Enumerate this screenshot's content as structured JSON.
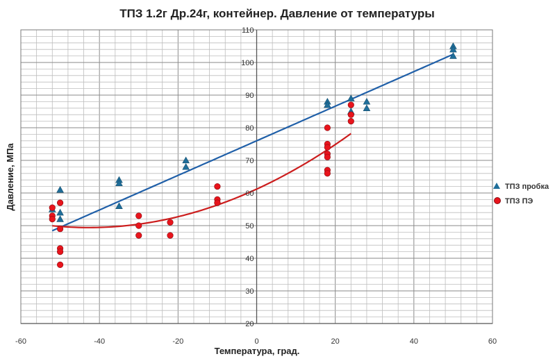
{
  "chart_data": {
    "type": "scatter",
    "title": "ТПЗ 1.2г Др.24г, контейнер. Давление от температуры",
    "xlabel": "Температура, град.",
    "ylabel": "Давление, МПа",
    "xlim": [
      -60,
      60
    ],
    "ylim": [
      20,
      110
    ],
    "xticks": [
      -60,
      -40,
      -20,
      0,
      20,
      40,
      60
    ],
    "xtick_labels": [
      "-60",
      "-40",
      "-20",
      "0",
      "20",
      "40",
      "60"
    ],
    "yticks": [
      20,
      30,
      40,
      50,
      60,
      70,
      80,
      90,
      100,
      110
    ],
    "ytick_labels": [
      "20",
      "30",
      "40",
      "50",
      "60",
      "70",
      "80",
      "90",
      "100",
      "110"
    ],
    "grid": true,
    "minor_x_step": 4,
    "minor_y_step": 2,
    "legend_position": "right",
    "series": [
      {
        "name": "ТПЗ пробка",
        "marker": "triangle",
        "color": "#1f6e9a",
        "trend_color": "#1f5fa8",
        "trend": {
          "type": "linear",
          "x_range": [
            -52,
            50
          ],
          "coefficients": [
            76.0,
            0.53
          ]
        },
        "points": [
          [
            -52,
            55
          ],
          [
            -50,
            61
          ],
          [
            -50,
            54
          ],
          [
            -50,
            52
          ],
          [
            -35,
            64
          ],
          [
            -35,
            63
          ],
          [
            -35,
            56
          ],
          [
            -18,
            70
          ],
          [
            -18,
            68
          ],
          [
            18,
            88
          ],
          [
            18,
            87
          ],
          [
            24,
            89
          ],
          [
            24,
            85
          ],
          [
            28,
            88
          ],
          [
            28,
            86
          ],
          [
            50,
            105
          ],
          [
            50,
            104
          ],
          [
            50,
            102
          ]
        ]
      },
      {
        "name": "ТПЗ ПЭ",
        "marker": "circle",
        "color": "#e8141c",
        "trend_color": "#cc1d1d",
        "trend": {
          "type": "polynomial",
          "x_range": [
            -52,
            24
          ],
          "coefficients": [
            61.2,
            0.553,
            0.00648
          ]
        },
        "points": [
          [
            -52,
            55.5
          ],
          [
            -52,
            53
          ],
          [
            -52,
            52
          ],
          [
            -50,
            57
          ],
          [
            -50,
            49
          ],
          [
            -50,
            43
          ],
          [
            -50,
            42
          ],
          [
            -50,
            38
          ],
          [
            -30,
            53
          ],
          [
            -30,
            50
          ],
          [
            -30,
            47
          ],
          [
            -22,
            51
          ],
          [
            -22,
            47
          ],
          [
            -10,
            62
          ],
          [
            -10,
            58
          ],
          [
            -10,
            57
          ],
          [
            18,
            80
          ],
          [
            18,
            75
          ],
          [
            18,
            74
          ],
          [
            18,
            72
          ],
          [
            18,
            71
          ],
          [
            18,
            67
          ],
          [
            18,
            66
          ],
          [
            24,
            87
          ],
          [
            24,
            84
          ],
          [
            24,
            82
          ]
        ]
      }
    ]
  }
}
